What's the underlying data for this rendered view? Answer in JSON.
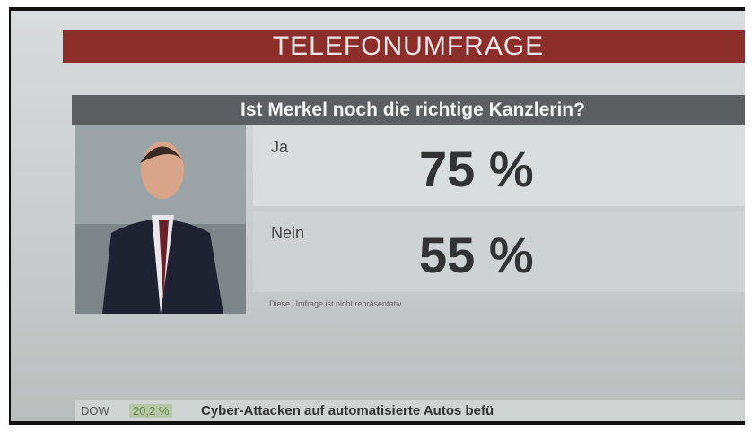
{
  "header": {
    "title": "TELEFONUMFRAGE"
  },
  "poll": {
    "question": "Ist Merkel noch die richtige Kanzlerin?",
    "options": [
      {
        "label": "Ja",
        "result": "75 %"
      },
      {
        "label": "Nein",
        "result": "55 %"
      }
    ],
    "disclaimer": "Diese Umfrage ist nicht repräsentativ"
  },
  "ticker": {
    "index": "DOW",
    "change": "20,2 %",
    "headline": "Cyber-Attacken auf automatisierte Autos befü"
  }
}
